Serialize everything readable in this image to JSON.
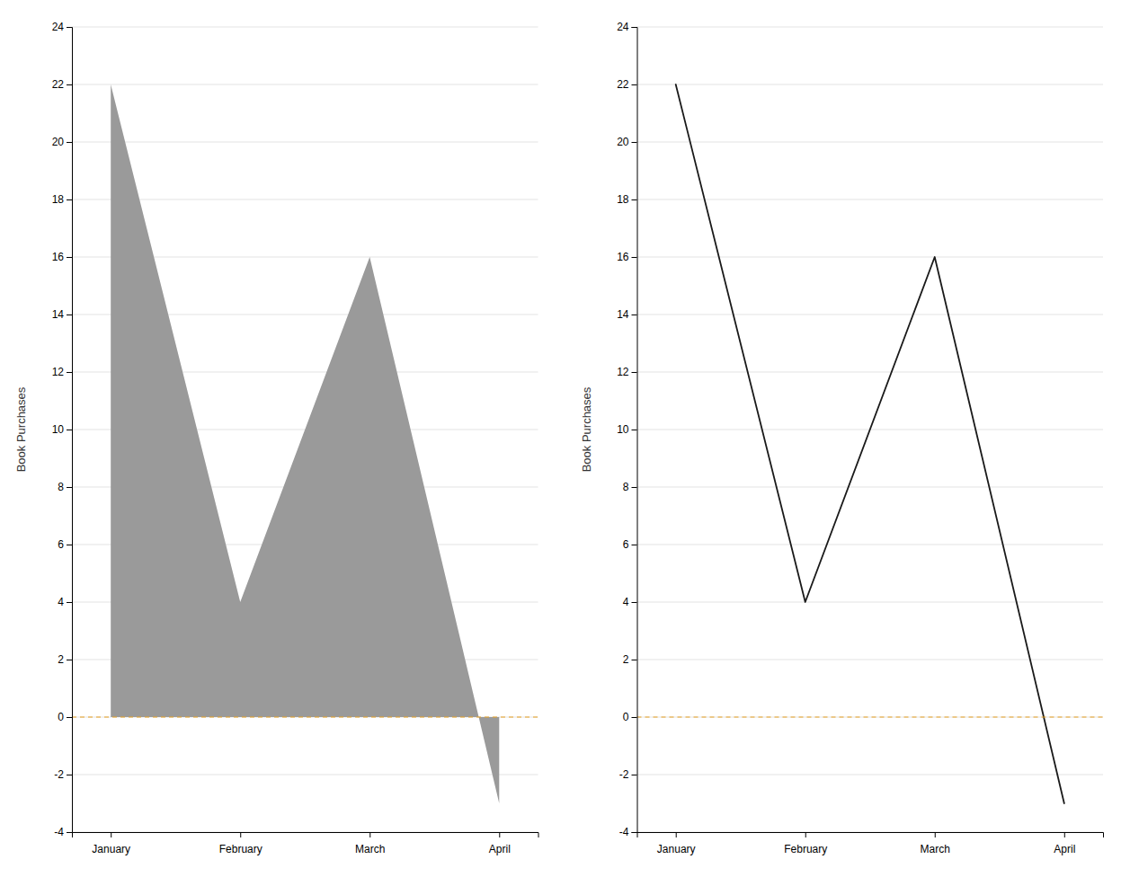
{
  "chart_data": [
    {
      "type": "area",
      "categories": [
        "January",
        "February",
        "March",
        "April"
      ],
      "values": [
        22,
        4,
        16,
        -3
      ],
      "color": "#9a9a9a",
      "ylabel": "Book Purchases",
      "ylim": [
        -4,
        24
      ],
      "yticks": [
        -4,
        -2,
        0,
        2,
        4,
        6,
        8,
        10,
        12,
        14,
        16,
        18,
        20,
        22,
        24
      ],
      "grid": true
    },
    {
      "type": "line",
      "categories": [
        "January",
        "February",
        "March",
        "April"
      ],
      "values": [
        22,
        4,
        16,
        -3
      ],
      "color": "#1a1a1a",
      "ylabel": "Book Purchases",
      "ylim": [
        -4,
        24
      ],
      "yticks": [
        -4,
        -2,
        0,
        2,
        4,
        6,
        8,
        10,
        12,
        14,
        16,
        18,
        20,
        22,
        24
      ],
      "grid": true
    }
  ]
}
